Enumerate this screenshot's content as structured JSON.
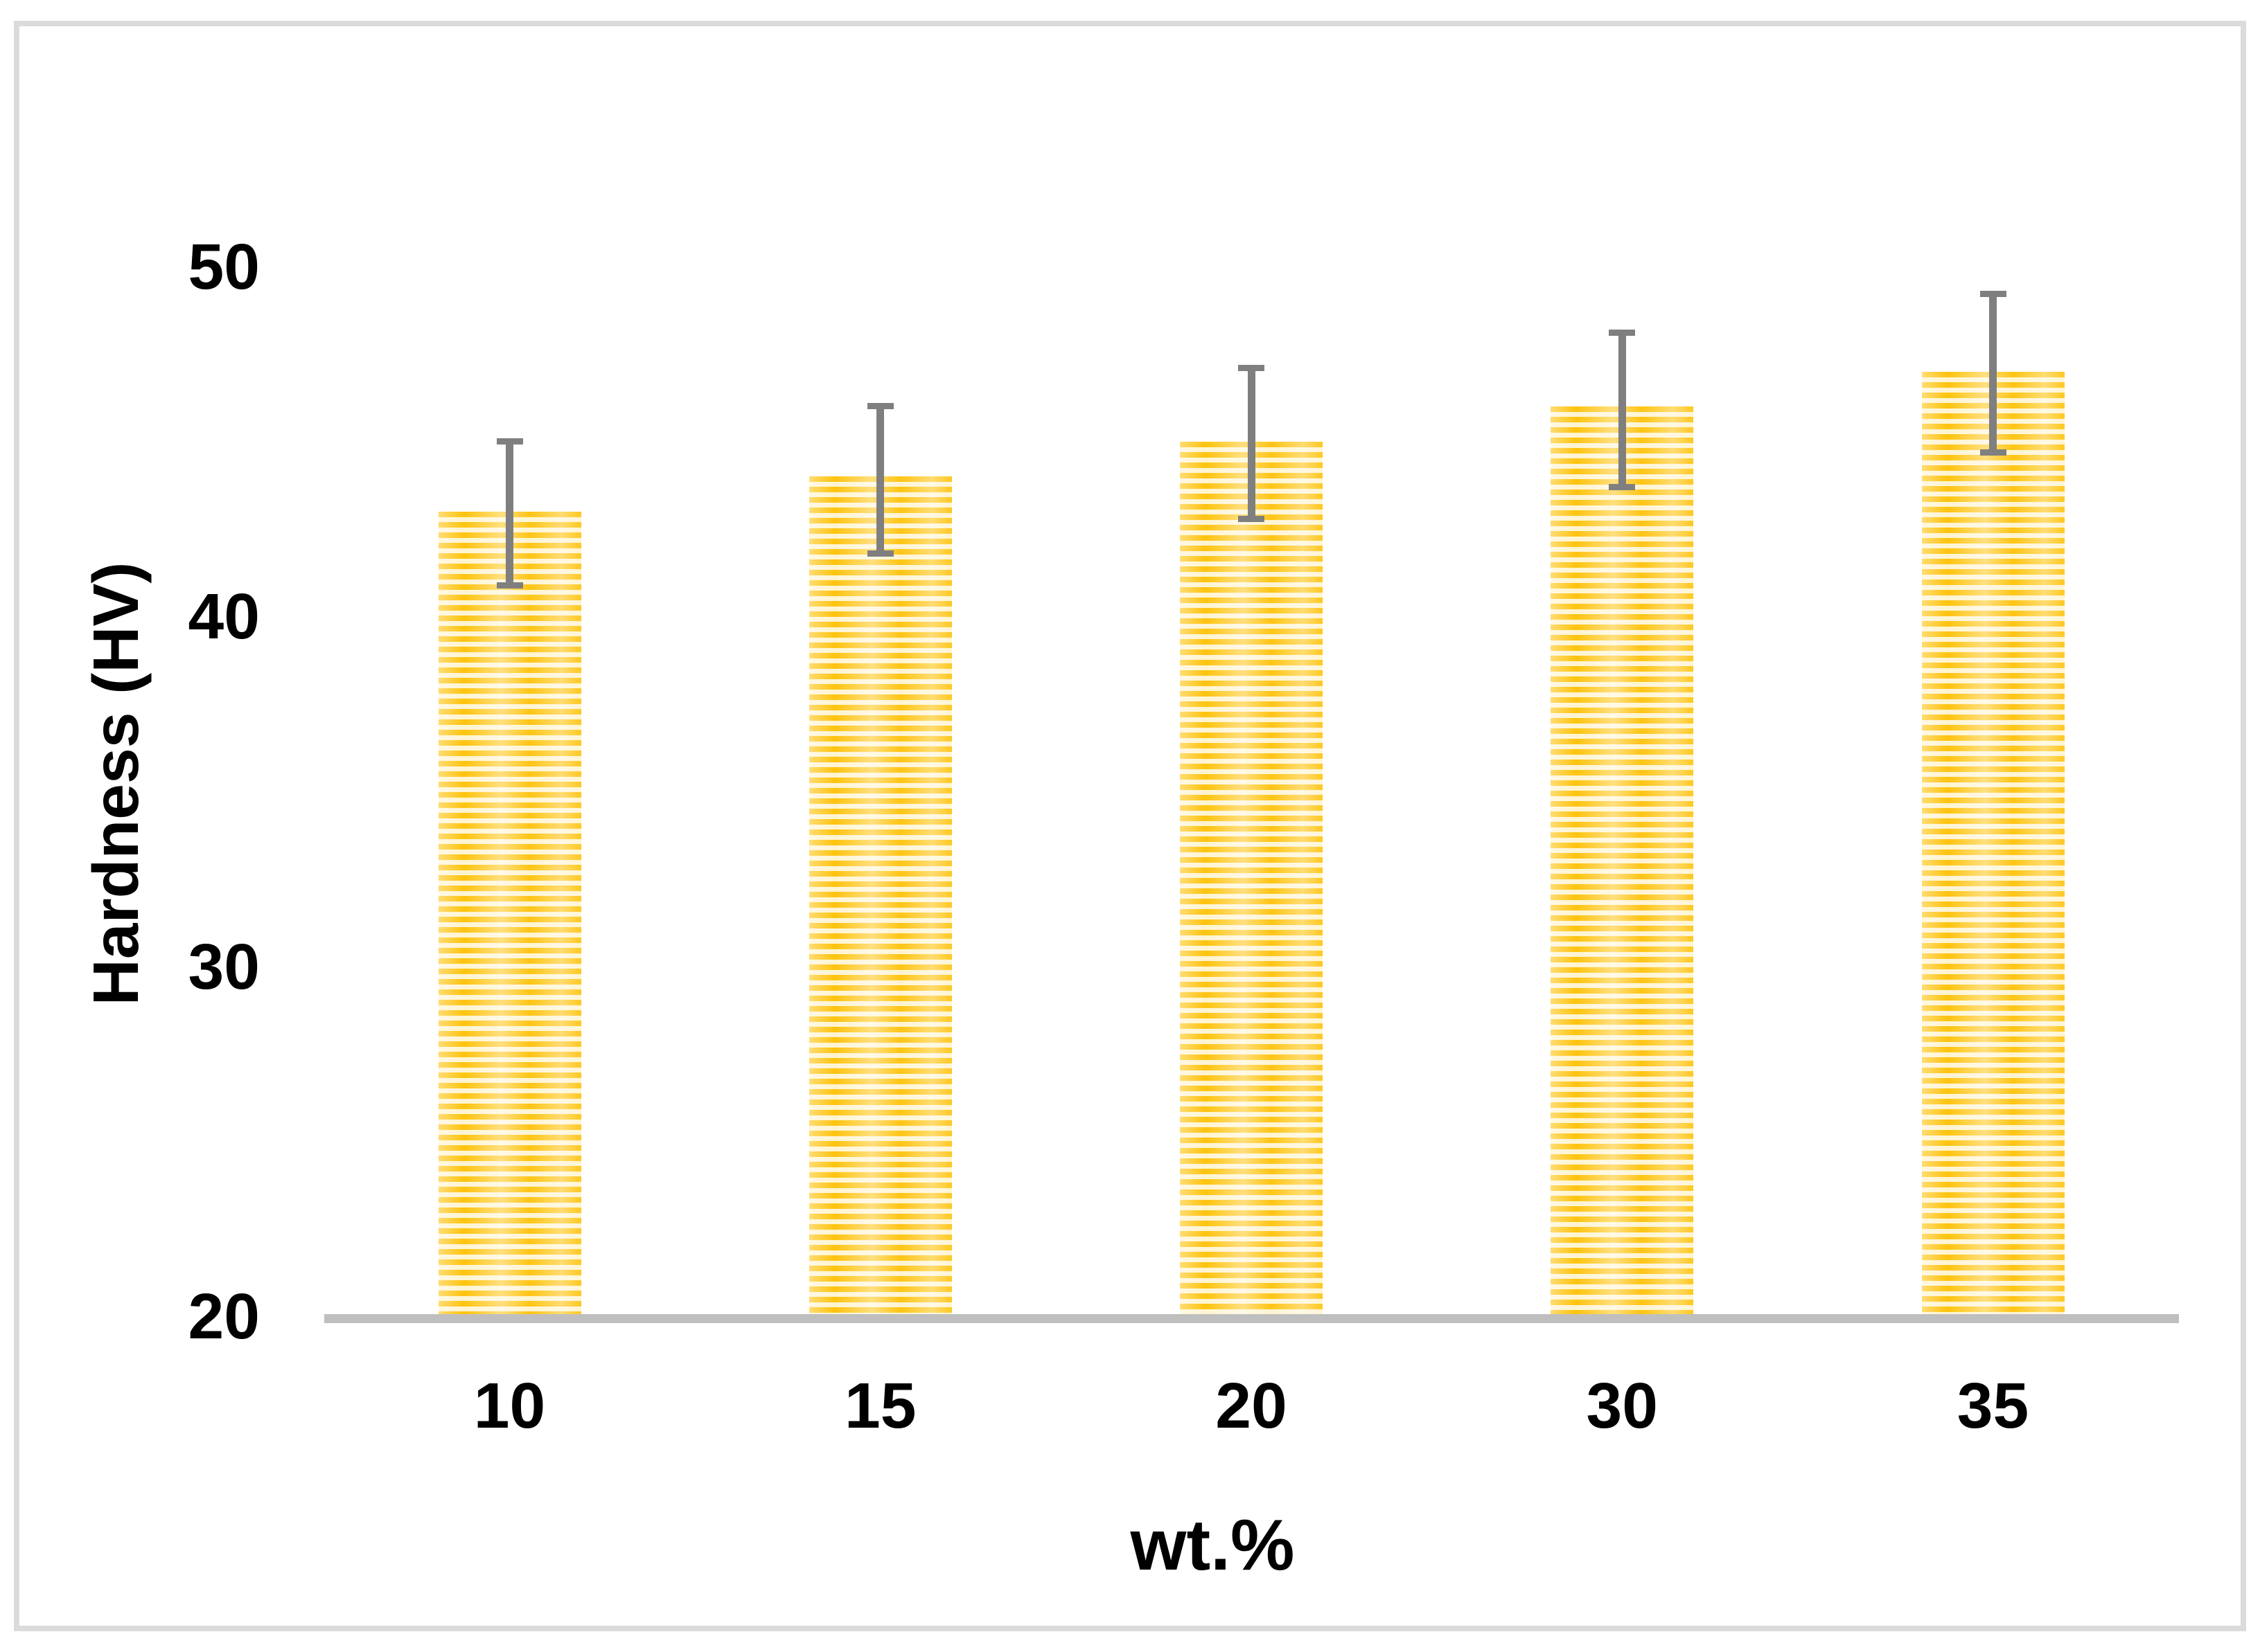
{
  "figure": {
    "background_color": "#FFFFFF",
    "frame_border_color": "#DBDBDB"
  },
  "chart_data": {
    "type": "bar",
    "title": "",
    "xlabel": "wt.%",
    "ylabel": "Hardness (HV)",
    "categories": [
      "10",
      "15",
      "20",
      "30",
      "35"
    ],
    "series": [
      {
        "name": "Hardness",
        "values": [
          43,
          44,
          45,
          46,
          47
        ]
      }
    ],
    "error_plus": [
      2.1,
      2.1,
      2.2,
      2.2,
      2.3
    ],
    "error_minus": [
      2.2,
      2.3,
      2.3,
      2.4,
      2.4
    ],
    "ylim": [
      20,
      53
    ],
    "yticks": [
      50,
      40,
      30,
      20
    ],
    "grid": false,
    "legend_position": "none",
    "bar_pattern": "horizontal-stripes",
    "colors": {
      "bar_stripe": "#FFC000",
      "bar_stripe_light": "#FFF3CE",
      "error_bar": "#7F7F7F",
      "axis_line": "#BFBFBF",
      "text": "#000000"
    }
  }
}
